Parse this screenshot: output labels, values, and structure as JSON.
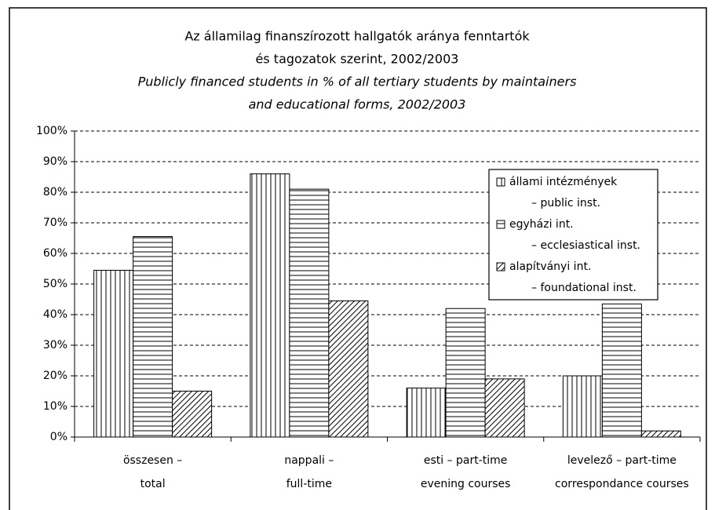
{
  "chart_data": {
    "type": "bar",
    "title": [
      "Az államilag finanszírozott hallgatók aránya fenntartók",
      "és tagozatok szerint,  2002/2003"
    ],
    "subtitle": [
      "Publicly financed students in % of all tertiary students by maintainers",
      "and educational forms, 2002/2003"
    ],
    "categories": [
      [
        "összesen –",
        "total"
      ],
      [
        "nappali –",
        "full-time"
      ],
      [
        "esti – part-time",
        "evening courses"
      ],
      [
        "levelező – part-time",
        "correspondance courses"
      ]
    ],
    "series": [
      {
        "name": [
          "állami intézmények",
          "– public inst."
        ],
        "color": "#000000",
        "pattern": "vertical",
        "values": [
          54.5,
          86,
          16,
          20
        ]
      },
      {
        "name": [
          "egyházi int.",
          "– ecclesiastical inst."
        ],
        "color": "#000000",
        "pattern": "horizontal",
        "values": [
          65.5,
          81,
          42,
          43.5
        ]
      },
      {
        "name": [
          "alapítványi int.",
          "– foundational inst."
        ],
        "color": "#000000",
        "pattern": "diagonal",
        "values": [
          15,
          44.5,
          19,
          2
        ]
      }
    ],
    "ylim": [
      0,
      100
    ],
    "yticks": [
      {
        "value": 0,
        "label": "0%"
      },
      {
        "value": 10,
        "label": "10%"
      },
      {
        "value": 20,
        "label": "20%"
      },
      {
        "value": 30,
        "label": "30%"
      },
      {
        "value": 40,
        "label": "40%"
      },
      {
        "value": 50,
        "label": "50%"
      },
      {
        "value": 60,
        "label": "60%"
      },
      {
        "value": 70,
        "label": "70%"
      },
      {
        "value": 80,
        "label": "80%"
      },
      {
        "value": 90,
        "label": "90%"
      },
      {
        "value": 100,
        "label": "100%"
      }
    ],
    "grid": true,
    "legend": "upper right"
  }
}
